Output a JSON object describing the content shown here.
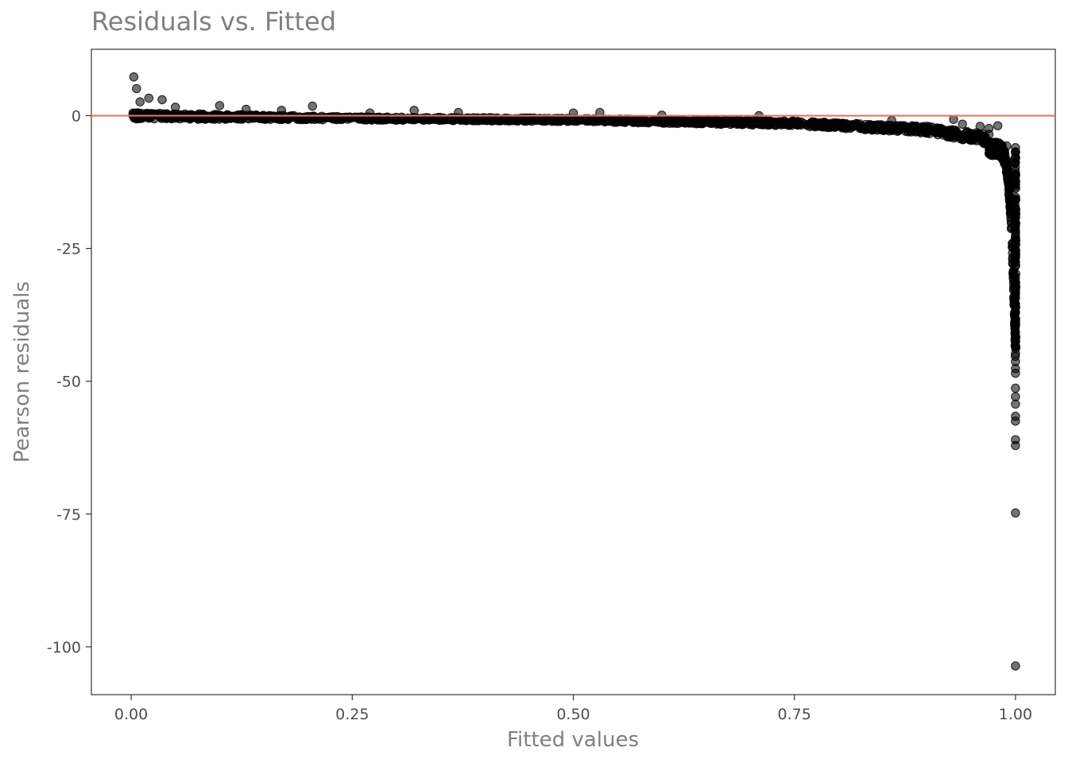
{
  "chart_data": {
    "type": "scatter",
    "title": "Residuals vs. Fitted",
    "xlabel": "Fitted values",
    "ylabel": "Pearson residuals",
    "xlim": [
      -0.045,
      1.045
    ],
    "ylim": [
      -109,
      12.5
    ],
    "xticks": [
      0.0,
      0.25,
      0.5,
      0.75,
      1.0
    ],
    "xtick_labels": [
      "0.00",
      "0.25",
      "0.50",
      "0.75",
      "1.00"
    ],
    "yticks": [
      0,
      -25,
      -50,
      -75,
      -100
    ],
    "ytick_labels": [
      "0",
      "-25",
      "-50",
      "-75",
      "-100"
    ],
    "grid": false,
    "reference_line": {
      "y": 0,
      "color": "#e8735a"
    },
    "point_color": "#000000",
    "point_opacity": 0.55,
    "band_description": [
      {
        "x": 0.0,
        "y_upper": 0.6,
        "y_lower": -0.6
      },
      {
        "x": 0.25,
        "y_upper": -0.2,
        "y_lower": -0.8
      },
      {
        "x": 0.5,
        "y_upper": -0.5,
        "y_lower": -1.1
      },
      {
        "x": 0.75,
        "y_upper": -1.0,
        "y_lower": -1.9
      },
      {
        "x": 0.9,
        "y_upper": -2.0,
        "y_lower": -3.3
      },
      {
        "x": 0.97,
        "y_upper": -3.5,
        "y_lower": -5.5
      }
    ],
    "points": [
      [
        0.003,
        7.3
      ],
      [
        0.006,
        5.1
      ],
      [
        0.01,
        2.6
      ],
      [
        0.02,
        3.3
      ],
      [
        0.035,
        3.0
      ],
      [
        0.05,
        1.6
      ],
      [
        0.1,
        1.9
      ],
      [
        0.13,
        1.2
      ],
      [
        0.17,
        1.0
      ],
      [
        0.205,
        1.8
      ],
      [
        0.27,
        0.5
      ],
      [
        0.32,
        1.0
      ],
      [
        0.37,
        0.6
      ],
      [
        0.5,
        0.5
      ],
      [
        0.53,
        0.6
      ],
      [
        0.6,
        0.1
      ],
      [
        0.71,
        0.0
      ],
      [
        0.86,
        -0.9
      ],
      [
        0.93,
        -0.7
      ],
      [
        0.94,
        -1.6
      ],
      [
        0.96,
        -2.0
      ],
      [
        0.98,
        -1.9
      ],
      [
        0.97,
        -2.4
      ],
      [
        0.99,
        -5.7
      ],
      [
        1.0,
        -44.8
      ],
      [
        1.0,
        -46.3
      ],
      [
        1.0,
        -47.6
      ],
      [
        1.0,
        -48.5
      ],
      [
        1.0,
        -51.3
      ],
      [
        1.0,
        -52.9
      ],
      [
        1.0,
        -54.3
      ],
      [
        1.0,
        -56.6
      ],
      [
        1.0,
        -57.5
      ],
      [
        1.0,
        -61.0
      ],
      [
        1.0,
        -62.1
      ],
      [
        1.0,
        -74.8
      ],
      [
        1.0,
        -103.6
      ]
    ]
  }
}
